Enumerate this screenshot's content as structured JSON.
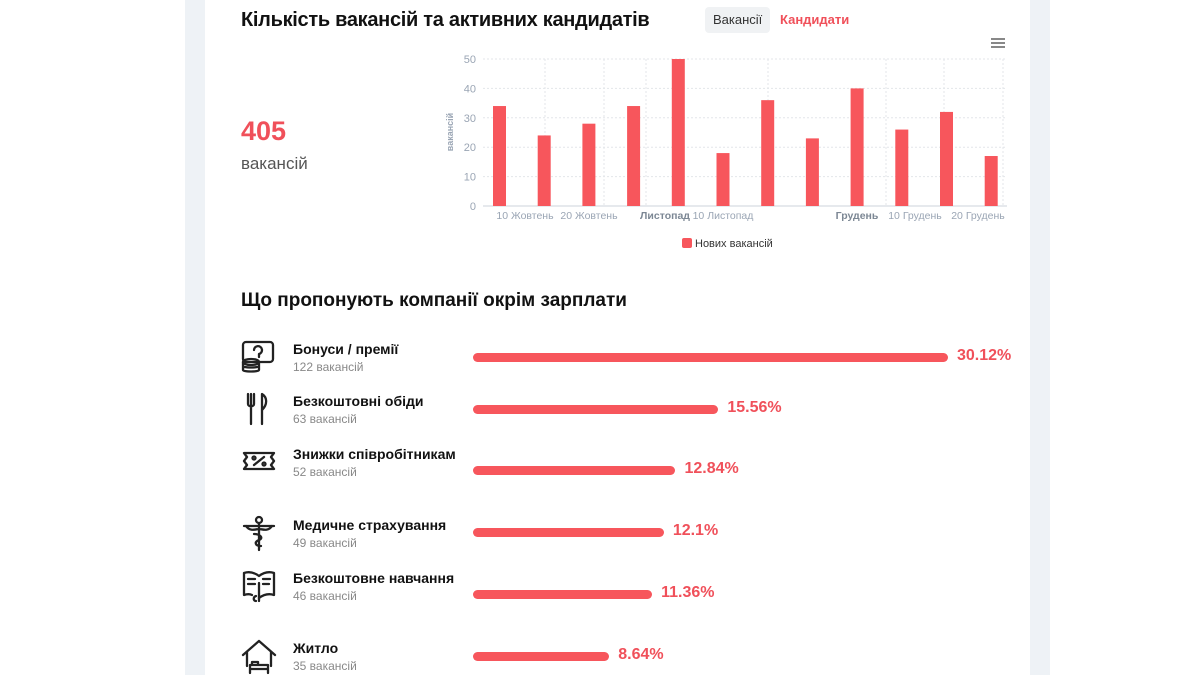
{
  "header": {
    "title": "Кількість вакансій та активних кандидатів",
    "tabs": [
      {
        "label": "Вакансії",
        "active": true
      },
      {
        "label": "Кандидати",
        "active": false
      }
    ],
    "menu_icon": "hamburger-icon"
  },
  "summary": {
    "value": "405",
    "label": "вакансій"
  },
  "accent": "#f7565c",
  "chart_data": {
    "type": "bar",
    "ylabel": "вакансій",
    "ylim": [
      0,
      50
    ],
    "yticks": [
      "0",
      "10",
      "20",
      "30",
      "40",
      "50"
    ],
    "grid": true,
    "values": [
      34,
      24,
      28,
      34,
      50,
      18,
      36,
      23,
      40,
      26,
      32,
      17
    ],
    "xticks": [
      {
        "label": "10 Жовтень",
        "bold": false
      },
      {
        "label": "20 Жовтень",
        "bold": false
      },
      {
        "label": "Листопад",
        "bold": true
      },
      {
        "label": "10 Листопад",
        "bold": false
      },
      {
        "label": "Грудень",
        "bold": true
      },
      {
        "label": "10 Грудень",
        "bold": false
      },
      {
        "label": "20 Грудень",
        "bold": false
      }
    ],
    "series": [
      {
        "name": "Нових вакансій",
        "color": "#f7565c"
      }
    ],
    "legend": "bottom"
  },
  "benefits": {
    "title": "Що пропонують компанії окрім зарплати",
    "items": [
      {
        "name": "Бонуси / премії",
        "count": "122 вакансій",
        "percent": 30.12,
        "percent_label": "30.12%",
        "icon": "money-coins-icon"
      },
      {
        "name": "Безкоштовні обіди",
        "count": "63 вакансій",
        "percent": 15.56,
        "percent_label": "15.56%",
        "icon": "fork-knife-icon"
      },
      {
        "name": "Знижки співробітникам",
        "count": "52 вакансій",
        "percent": 12.84,
        "percent_label": "12.84%",
        "icon": "discount-ticket-icon"
      },
      {
        "name": "Медичне страхування",
        "count": "49 вакансій",
        "percent": 12.1,
        "percent_label": "12.1%",
        "icon": "caduceus-icon"
      },
      {
        "name": "Безкоштовне навчання",
        "count": "46 вакансій",
        "percent": 11.36,
        "percent_label": "11.36%",
        "icon": "book-icon"
      },
      {
        "name": "Житло",
        "count": "35 вакансій",
        "percent": 8.64,
        "percent_label": "8.64%",
        "icon": "house-bed-icon"
      }
    ]
  }
}
